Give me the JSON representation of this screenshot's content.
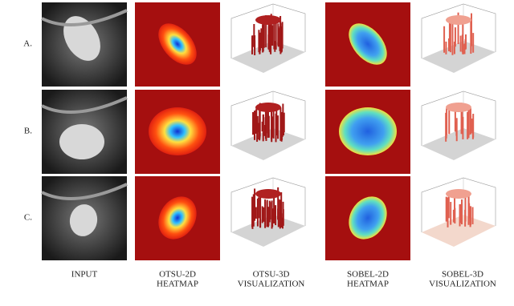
{
  "rows": [
    {
      "label": "A."
    },
    {
      "label": "B."
    },
    {
      "label": "C."
    }
  ],
  "columns": [
    {
      "lines": [
        "INPUT"
      ]
    },
    {
      "lines": [
        "OTSU-2D",
        "HEATMAP"
      ]
    },
    {
      "lines": [
        "OTSU-3D",
        "VISUALIZATION"
      ]
    },
    {
      "lines": [
        "SOBEL-2D",
        "HEATMAP"
      ]
    },
    {
      "lines": [
        "SOBEL-3D",
        "VISUALIZATION"
      ]
    }
  ]
}
